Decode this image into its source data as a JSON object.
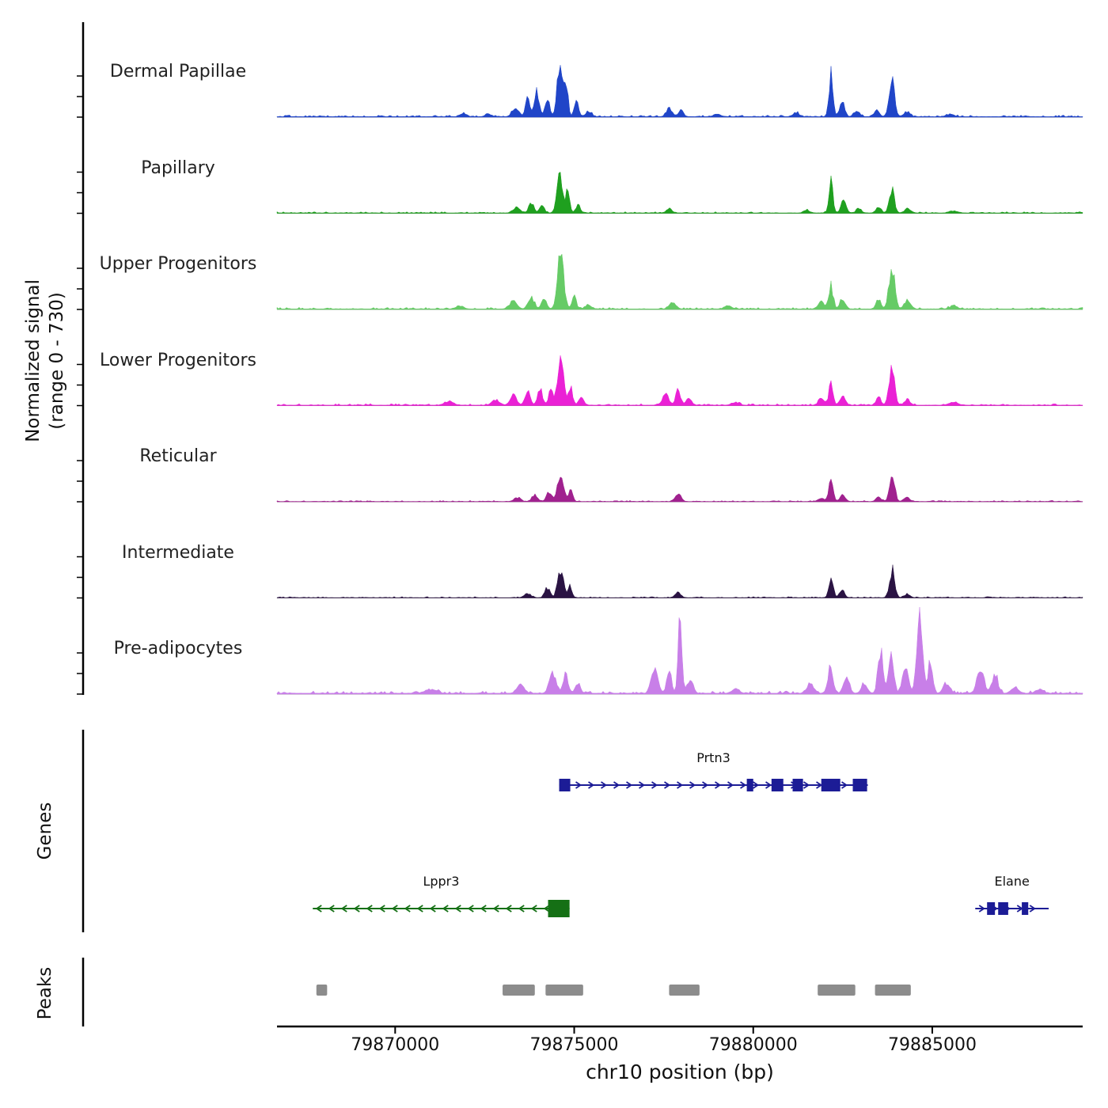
{
  "sections": {
    "genes": "Genes",
    "peaks": "Peaks"
  },
  "chart_data": {
    "type": "area",
    "subtype": "genome-browser-coverage-tracks",
    "x_axis": {
      "label": "chr10 position (bp)",
      "min": 79866700,
      "max": 79889200,
      "ticks": [
        {
          "value": 79870000,
          "label": "79870000"
        },
        {
          "value": 79875000,
          "label": "79875000"
        },
        {
          "value": 79880000,
          "label": "79880000"
        },
        {
          "value": 79885000,
          "label": "79885000"
        }
      ]
    },
    "y_axis": {
      "label_line1": "Normalized signal",
      "label_line2": "(range 0 - 730)",
      "range": [
        0,
        730
      ]
    },
    "peaks_format": "[center_bp, sigma_bp, relative_height_0to1]",
    "tracks": [
      {
        "name": "Dermal Papillae",
        "color": "#2045c8",
        "relative_max": 0.58,
        "peaks": [
          [
            79871900,
            80,
            0.07
          ],
          [
            79872600,
            80,
            0.06
          ],
          [
            79873350,
            90,
            0.18
          ],
          [
            79873700,
            60,
            0.42
          ],
          [
            79873950,
            70,
            0.5
          ],
          [
            79874250,
            60,
            0.35
          ],
          [
            79874600,
            75,
            1.0
          ],
          [
            79874780,
            50,
            0.62
          ],
          [
            79875060,
            60,
            0.3
          ],
          [
            79875400,
            80,
            0.1
          ],
          [
            79877650,
            80,
            0.16
          ],
          [
            79877980,
            70,
            0.12
          ],
          [
            79879000,
            100,
            0.05
          ],
          [
            79881200,
            80,
            0.08
          ],
          [
            79882170,
            55,
            0.8
          ],
          [
            79882480,
            70,
            0.28
          ],
          [
            79882900,
            80,
            0.1
          ],
          [
            79883450,
            70,
            0.14
          ],
          [
            79883870,
            75,
            0.72
          ],
          [
            79884300,
            80,
            0.1
          ],
          [
            79885500,
            100,
            0.05
          ]
        ]
      },
      {
        "name": "Papillary",
        "color": "#1fa01f",
        "relative_max": 0.46,
        "peaks": [
          [
            79873400,
            90,
            0.12
          ],
          [
            79873800,
            70,
            0.25
          ],
          [
            79874100,
            60,
            0.2
          ],
          [
            79874600,
            80,
            0.92
          ],
          [
            79874820,
            55,
            0.5
          ],
          [
            79875100,
            60,
            0.2
          ],
          [
            79877650,
            80,
            0.1
          ],
          [
            79881500,
            80,
            0.06
          ],
          [
            79882170,
            55,
            0.8
          ],
          [
            79882520,
            70,
            0.3
          ],
          [
            79882950,
            70,
            0.12
          ],
          [
            79883500,
            70,
            0.15
          ],
          [
            79883870,
            70,
            0.6
          ],
          [
            79884300,
            80,
            0.1
          ],
          [
            79885600,
            100,
            0.05
          ]
        ]
      },
      {
        "name": "Upper Progenitors",
        "color": "#66cb66",
        "relative_max": 0.62,
        "peaks": [
          [
            79871800,
            100,
            0.06
          ],
          [
            79873300,
            100,
            0.15
          ],
          [
            79873800,
            80,
            0.22
          ],
          [
            79874150,
            70,
            0.2
          ],
          [
            79874620,
            85,
            1.0
          ],
          [
            79875000,
            60,
            0.22
          ],
          [
            79875400,
            80,
            0.08
          ],
          [
            79877750,
            90,
            0.12
          ],
          [
            79879300,
            100,
            0.06
          ],
          [
            79881900,
            80,
            0.15
          ],
          [
            79882170,
            60,
            0.42
          ],
          [
            79882500,
            70,
            0.18
          ],
          [
            79883500,
            70,
            0.15
          ],
          [
            79883870,
            80,
            0.75
          ],
          [
            79884300,
            80,
            0.15
          ],
          [
            79885600,
            100,
            0.06
          ]
        ]
      },
      {
        "name": "Lower Progenitors",
        "color": "#ea21d5",
        "relative_max": 0.56,
        "peaks": [
          [
            79871500,
            120,
            0.08
          ],
          [
            79872800,
            100,
            0.1
          ],
          [
            79873300,
            90,
            0.22
          ],
          [
            79873700,
            70,
            0.28
          ],
          [
            79874050,
            70,
            0.3
          ],
          [
            79874350,
            60,
            0.3
          ],
          [
            79874620,
            80,
            1.0
          ],
          [
            79874900,
            55,
            0.35
          ],
          [
            79875200,
            70,
            0.15
          ],
          [
            79877550,
            90,
            0.2
          ],
          [
            79877900,
            70,
            0.28
          ],
          [
            79878200,
            80,
            0.12
          ],
          [
            79879500,
            100,
            0.06
          ],
          [
            79881900,
            80,
            0.12
          ],
          [
            79882170,
            60,
            0.42
          ],
          [
            79882500,
            70,
            0.2
          ],
          [
            79883500,
            70,
            0.15
          ],
          [
            79883870,
            75,
            0.75
          ],
          [
            79884300,
            80,
            0.12
          ],
          [
            79885600,
            120,
            0.06
          ]
        ]
      },
      {
        "name": "Reticular",
        "color": "#a0218f",
        "relative_max": 0.37,
        "peaks": [
          [
            79873400,
            90,
            0.12
          ],
          [
            79873900,
            80,
            0.2
          ],
          [
            79874300,
            70,
            0.3
          ],
          [
            79874620,
            80,
            0.85
          ],
          [
            79874900,
            55,
            0.35
          ],
          [
            79877900,
            80,
            0.25
          ],
          [
            79881900,
            80,
            0.12
          ],
          [
            79882170,
            60,
            0.6
          ],
          [
            79882500,
            70,
            0.22
          ],
          [
            79883500,
            70,
            0.15
          ],
          [
            79883880,
            70,
            0.9
          ],
          [
            79884300,
            80,
            0.12
          ]
        ]
      },
      {
        "name": "Intermediate",
        "color": "#2a1343",
        "relative_max": 0.37,
        "peaks": [
          [
            79873700,
            90,
            0.12
          ],
          [
            79874250,
            70,
            0.3
          ],
          [
            79874620,
            80,
            0.85
          ],
          [
            79874880,
            55,
            0.35
          ],
          [
            79877900,
            80,
            0.15
          ],
          [
            79882170,
            60,
            0.6
          ],
          [
            79882480,
            70,
            0.22
          ],
          [
            79883880,
            70,
            0.85
          ],
          [
            79884300,
            80,
            0.1
          ]
        ]
      },
      {
        "name": "Pre-adipocytes",
        "color": "#c87fe8",
        "relative_max": 0.97,
        "peaks": [
          [
            79871000,
            150,
            0.04
          ],
          [
            79873500,
            100,
            0.1
          ],
          [
            79874400,
            90,
            0.25
          ],
          [
            79874750,
            70,
            0.22
          ],
          [
            79875100,
            80,
            0.1
          ],
          [
            79877250,
            90,
            0.3
          ],
          [
            79877650,
            70,
            0.25
          ],
          [
            79877960,
            50,
            1.0
          ],
          [
            79878250,
            70,
            0.18
          ],
          [
            79879500,
            100,
            0.05
          ],
          [
            79881600,
            90,
            0.12
          ],
          [
            79882150,
            70,
            0.28
          ],
          [
            79882600,
            80,
            0.18
          ],
          [
            79883100,
            80,
            0.12
          ],
          [
            79883550,
            70,
            0.5
          ],
          [
            79883850,
            70,
            0.45
          ],
          [
            79884250,
            80,
            0.3
          ],
          [
            79884650,
            80,
            0.92
          ],
          [
            79884950,
            60,
            0.4
          ],
          [
            79885400,
            90,
            0.12
          ],
          [
            79886350,
            100,
            0.28
          ],
          [
            79886750,
            80,
            0.22
          ],
          [
            79887300,
            100,
            0.07
          ],
          [
            79888000,
            100,
            0.05
          ]
        ]
      }
    ],
    "genes": [
      {
        "name": "Prtn3",
        "color": "#1c1c96",
        "strand": "+",
        "row": 0,
        "start": 79874580,
        "end": 79883200,
        "exons": [
          [
            79874580,
            79874890
          ],
          [
            79879820,
            79880000
          ],
          [
            79880510,
            79880840
          ],
          [
            79881100,
            79881390
          ],
          [
            79881900,
            79882430
          ],
          [
            79882780,
            79883180
          ]
        ]
      },
      {
        "name": "Lppr3",
        "color": "#157015",
        "strand": "-",
        "row": 1,
        "start": 79867700,
        "end": 79874870,
        "exons": [
          [
            79874270,
            79874870
          ]
        ]
      },
      {
        "name": "Elane",
        "color": "#1c1c96",
        "strand": "+",
        "row": 1,
        "start": 79886200,
        "end": 79888250,
        "exons": [
          [
            79886530,
            79886750
          ],
          [
            79886840,
            79887120
          ],
          [
            79887500,
            79887680
          ]
        ]
      }
    ],
    "peaks_track": {
      "color": "#8c8c8c",
      "regions": [
        [
          79867800,
          79868100
        ],
        [
          79873000,
          79873900
        ],
        [
          79874200,
          79875250
        ],
        [
          79877650,
          79878500
        ],
        [
          79881800,
          79882850
        ],
        [
          79883400,
          79884400
        ]
      ]
    }
  }
}
